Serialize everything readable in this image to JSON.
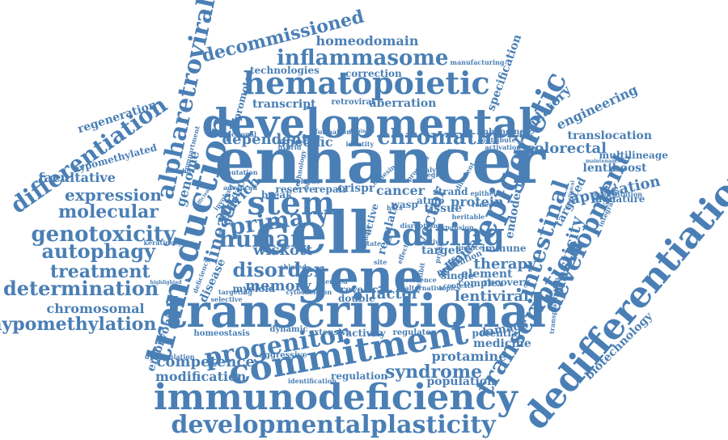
{
  "colors": {
    "word": "#4a7fb5",
    "background": "#ffffff"
  },
  "words": [
    "enhancer",
    "cell",
    "gene",
    "transcriptional",
    "developmental",
    "immunodeficiency",
    "transduction",
    "dedifferentiation",
    "commitment",
    "stem",
    "hematopoietic",
    "developmentalplasticity",
    "editing",
    "epigenetic",
    "transcription",
    "development",
    "alpharetroviral",
    "differentiation",
    "progenitor",
    "inflammasome",
    "chromatin",
    "human",
    "primary",
    "disorder",
    "intestinal",
    "syndrome",
    "lineage",
    "genotoxicity",
    "autophagy",
    "determination",
    "hypomethylation",
    "expression",
    "molecular",
    "treatment",
    "chromosomal",
    "decommissioned",
    "homeodomain",
    "colorectal",
    "translocation",
    "application",
    "lentiviral",
    "therapy",
    "protamine",
    "biotechnology",
    "embryonic",
    "memory",
    "factor",
    "wiskott",
    "aldrich",
    "dependent",
    "competence",
    "modification",
    "population",
    "medicine",
    "plasticity",
    "targeted",
    "regulatory",
    "engineering",
    "regeneration",
    "facultative",
    "hypomethylated",
    "genome",
    "vector",
    "clinical",
    "element",
    "damage",
    "lentiboost",
    "multilineage",
    "signature",
    "specification",
    "protein",
    "endoderm",
    "cancer",
    "promoter",
    "transcript",
    "aberration",
    "retroviral",
    "technologies",
    "correction",
    "specific",
    "disease",
    "genetic",
    "myeloid",
    "reserve",
    "reveal",
    "double",
    "regulate",
    "tissue",
    "target",
    "manufacturing",
    "homeostasis",
    "dynamic",
    "extensive",
    "activity",
    "regulator",
    "potential",
    "aggressive",
    "regulation",
    "identification",
    "dysregulation",
    "crispr",
    "break",
    "repair",
    "strand",
    "epithelial",
    "renewal",
    "sulfate",
    "complex",
    "recovery",
    "immune",
    "single",
    "active",
    "wasp",
    "atmp",
    "reconstitution",
    "transplantation",
    "mutation",
    "compartment",
    "functional",
    "formation",
    "identity",
    "enhancing",
    "contribute",
    "activation",
    "integration",
    "maintenance",
    "advanced",
    "selective",
    "derived",
    "cytoskeleton",
    "blood",
    "innate",
    "ablated",
    "keratinocytes",
    "highlighted",
    "targeting",
    "analysis",
    "region",
    "different",
    "dominant",
    "efficient",
    "involved",
    "deficiency",
    "biomedical",
    "plastic",
    "cohesin",
    "program",
    "outlined",
    "hybrid",
    "technology",
    "absorptive",
    "prevention",
    "hscs",
    "induce",
    "contexts",
    "alternative",
    "topics",
    "evidence",
    "state",
    "site",
    "effect",
    "inactive",
    "profile",
    "heritable",
    "expansion",
    "exhibit",
    "disruption",
    "preclinical"
  ]
}
